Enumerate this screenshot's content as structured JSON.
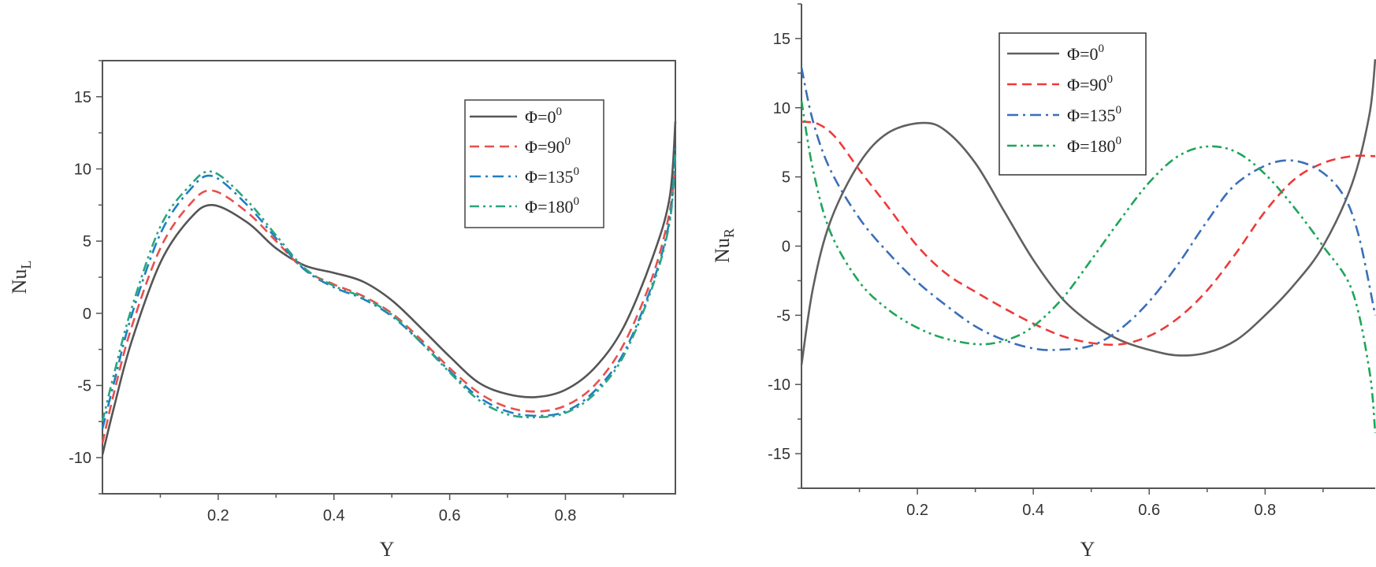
{
  "chart_data": [
    {
      "type": "line",
      "xlabel": "Y",
      "ylabel": "Nu",
      "ylabel_sub": "L",
      "xlim": [
        0.0,
        0.99
      ],
      "ylim": [
        -12.5,
        17.5
      ],
      "xticks": [
        0.2,
        0.4,
        0.6,
        0.8
      ],
      "xtick_labels": [
        "0.2",
        "0.4",
        "0.6",
        "0.8"
      ],
      "yticks": [
        -10,
        -5,
        0,
        5,
        10,
        15
      ],
      "ytick_labels": [
        "-10",
        "-5",
        "0",
        "5",
        "10",
        "15"
      ],
      "legend_position": "top-right",
      "series": [
        {
          "name": "Φ=0",
          "sup": "0",
          "color": "#555555",
          "dash": "solid",
          "x": [
            0.0,
            0.02,
            0.05,
            0.1,
            0.15,
            0.19,
            0.25,
            0.3,
            0.35,
            0.4,
            0.45,
            0.5,
            0.55,
            0.6,
            0.65,
            0.7,
            0.75,
            0.8,
            0.85,
            0.9,
            0.95,
            0.98,
            0.99
          ],
          "y": [
            -9.8,
            -6.5,
            -2.0,
            3.5,
            6.5,
            7.5,
            6.3,
            4.5,
            3.3,
            2.8,
            2.2,
            0.9,
            -1.0,
            -3.0,
            -4.8,
            -5.6,
            -5.8,
            -5.3,
            -3.8,
            -1.0,
            3.8,
            8.0,
            13.3
          ]
        },
        {
          "name": "Φ=90",
          "sup": "0",
          "color": "#e8504d",
          "dash": "dashed",
          "x": [
            0.0,
            0.02,
            0.05,
            0.1,
            0.15,
            0.19,
            0.25,
            0.3,
            0.35,
            0.4,
            0.45,
            0.5,
            0.55,
            0.6,
            0.65,
            0.7,
            0.75,
            0.8,
            0.85,
            0.9,
            0.95,
            0.98,
            0.99
          ],
          "y": [
            -9.0,
            -5.5,
            -1.0,
            4.5,
            7.5,
            8.5,
            7.0,
            5.0,
            3.0,
            2.0,
            1.2,
            0.0,
            -1.8,
            -3.8,
            -5.5,
            -6.5,
            -6.8,
            -6.4,
            -5.0,
            -2.2,
            2.5,
            7.0,
            10.5
          ]
        },
        {
          "name": "Φ=135",
          "sup": "0",
          "color": "#1f7fc2",
          "dash": "dashdot",
          "x": [
            0.0,
            0.02,
            0.05,
            0.1,
            0.15,
            0.19,
            0.25,
            0.3,
            0.35,
            0.4,
            0.45,
            0.5,
            0.55,
            0.6,
            0.65,
            0.7,
            0.75,
            0.8,
            0.85,
            0.9,
            0.95,
            0.98,
            0.99
          ],
          "y": [
            -8.0,
            -4.8,
            -0.2,
            5.5,
            8.5,
            9.5,
            7.5,
            5.2,
            3.0,
            1.8,
            1.0,
            -0.2,
            -2.0,
            -4.0,
            -5.8,
            -6.8,
            -7.1,
            -6.8,
            -5.4,
            -2.8,
            2.0,
            6.5,
            11.5
          ]
        },
        {
          "name": "Φ=180",
          "sup": "0",
          "color": "#2aa580",
          "dash": "dashdotdot",
          "x": [
            0.0,
            0.02,
            0.05,
            0.1,
            0.15,
            0.19,
            0.25,
            0.3,
            0.35,
            0.4,
            0.45,
            0.5,
            0.55,
            0.6,
            0.65,
            0.7,
            0.75,
            0.8,
            0.85,
            0.9,
            0.95,
            0.98,
            0.99
          ],
          "y": [
            -7.5,
            -4.2,
            0.3,
            6.0,
            8.8,
            9.8,
            7.8,
            5.4,
            3.1,
            1.9,
            1.1,
            -0.1,
            -2.0,
            -4.1,
            -6.0,
            -7.0,
            -7.2,
            -6.9,
            -5.6,
            -3.0,
            1.8,
            6.3,
            11.0
          ]
        }
      ]
    },
    {
      "type": "line",
      "xlabel": "Y",
      "ylabel": "Nu",
      "ylabel_sub": "R",
      "xlim": [
        0.0,
        0.99
      ],
      "ylim": [
        -17.5,
        17.5
      ],
      "xticks": [
        0.2,
        0.4,
        0.6,
        0.8
      ],
      "xtick_labels": [
        "0.2",
        "0.4",
        "0.6",
        "0.8"
      ],
      "yticks": [
        -15,
        -10,
        -5,
        0,
        5,
        10,
        15
      ],
      "ytick_labels": [
        "-15",
        "-10",
        "-5",
        "0",
        "5",
        "10",
        "15"
      ],
      "legend_position": "top-left",
      "series": [
        {
          "name": "Φ=0",
          "sup": "0",
          "color": "#606060",
          "dash": "solid",
          "x": [
            0.0,
            0.02,
            0.05,
            0.1,
            0.15,
            0.21,
            0.25,
            0.3,
            0.35,
            0.4,
            0.45,
            0.5,
            0.55,
            0.6,
            0.65,
            0.7,
            0.75,
            0.8,
            0.85,
            0.9,
            0.95,
            0.98,
            0.99
          ],
          "y": [
            -8.6,
            -3.0,
            1.8,
            6.0,
            8.2,
            8.9,
            8.3,
            6.0,
            2.5,
            -1.0,
            -3.8,
            -5.6,
            -6.8,
            -7.5,
            -7.9,
            -7.7,
            -6.8,
            -5.0,
            -2.8,
            0.0,
            4.5,
            9.5,
            13.5
          ]
        },
        {
          "name": "Φ=90",
          "sup": "0",
          "color": "#ee3a3a",
          "dash": "dashed",
          "x": [
            0.0,
            0.03,
            0.06,
            0.1,
            0.15,
            0.2,
            0.25,
            0.3,
            0.35,
            0.4,
            0.45,
            0.5,
            0.55,
            0.6,
            0.65,
            0.7,
            0.75,
            0.8,
            0.85,
            0.9,
            0.95,
            0.99
          ],
          "y": [
            9.0,
            8.8,
            7.8,
            5.5,
            2.8,
            0.0,
            -2.0,
            -3.3,
            -4.5,
            -5.6,
            -6.5,
            -7.0,
            -7.1,
            -6.5,
            -5.2,
            -3.2,
            -0.5,
            2.5,
            4.8,
            6.0,
            6.5,
            6.5
          ]
        },
        {
          "name": "Φ=135",
          "sup": "0",
          "color": "#3a6fb8",
          "dash": "dashdot",
          "x": [
            0.0,
            0.02,
            0.05,
            0.1,
            0.15,
            0.2,
            0.25,
            0.3,
            0.35,
            0.4,
            0.44,
            0.5,
            0.55,
            0.6,
            0.65,
            0.7,
            0.75,
            0.82,
            0.88,
            0.93,
            0.96,
            0.99
          ],
          "y": [
            12.9,
            9.0,
            5.5,
            2.0,
            -0.5,
            -2.6,
            -4.3,
            -5.8,
            -6.8,
            -7.4,
            -7.5,
            -7.2,
            -6.0,
            -4.0,
            -1.3,
            1.8,
            4.5,
            6.1,
            5.8,
            4.0,
            1.0,
            -5.0
          ]
        },
        {
          "name": "Φ=180",
          "sup": "0",
          "color": "#1fa55a",
          "dash": "dashdotdot",
          "x": [
            0.0,
            0.02,
            0.05,
            0.1,
            0.15,
            0.2,
            0.25,
            0.31,
            0.36,
            0.4,
            0.45,
            0.5,
            0.55,
            0.6,
            0.65,
            0.7,
            0.75,
            0.8,
            0.85,
            0.9,
            0.95,
            0.98,
            0.99
          ],
          "y": [
            10.5,
            5.5,
            1.0,
            -2.6,
            -4.6,
            -5.9,
            -6.7,
            -7.1,
            -6.7,
            -5.8,
            -3.8,
            -1.0,
            1.9,
            4.6,
            6.5,
            7.2,
            6.8,
            5.2,
            2.8,
            0.0,
            -3.2,
            -9.0,
            -13.5
          ]
        }
      ]
    }
  ]
}
